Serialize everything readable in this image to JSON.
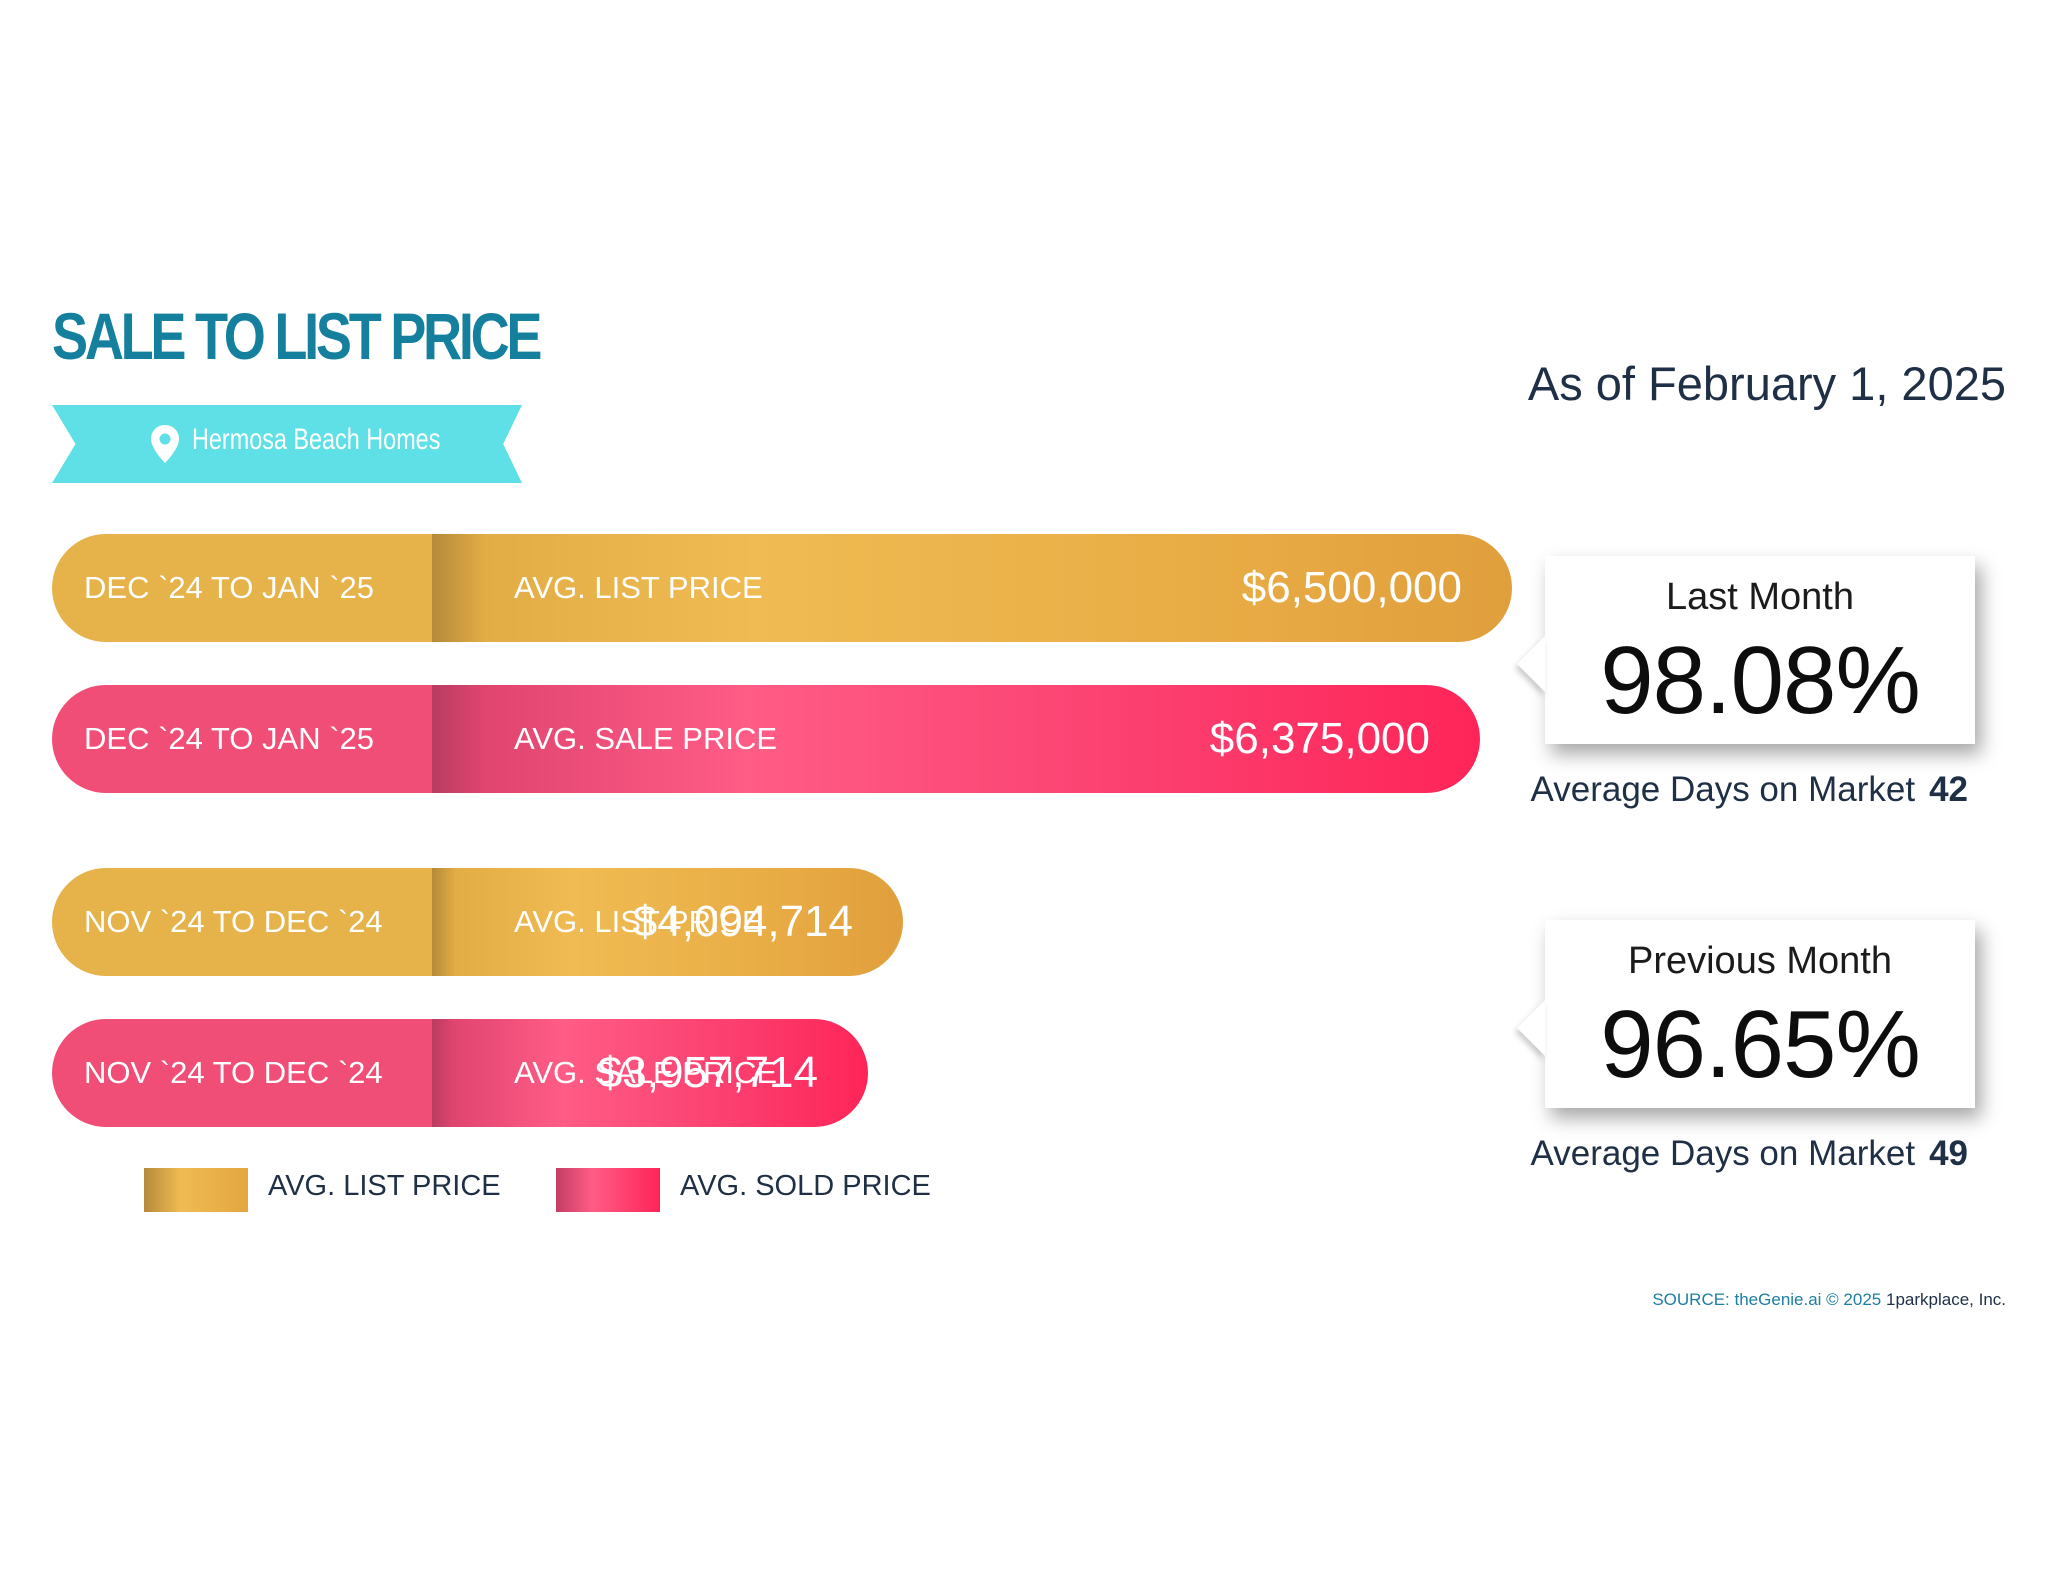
{
  "header": {
    "title": "SALE TO LIST PRICE",
    "location": "Hermosa Beach Homes",
    "as_of": "As of February 1, 2025"
  },
  "colors": {
    "title": "#14809e",
    "ribbon": "#5ee0e6",
    "list_price": "#e6b24a",
    "sale_price": "#f04e77"
  },
  "bars": [
    {
      "period": "DEC `24 TO JAN `25",
      "metric": "AVG. LIST PRICE",
      "value_label": "$6,500,000",
      "value": 6500000,
      "kind": "list"
    },
    {
      "period": "DEC `24 TO JAN `25",
      "metric": "AVG. SALE PRICE",
      "value_label": "$6,375,000",
      "value": 6375000,
      "kind": "sale"
    },
    {
      "period": "NOV `24 TO DEC `24",
      "metric": "AVG. LIST PRICE",
      "value_label": "$4,094,714",
      "value": 4094714,
      "kind": "list"
    },
    {
      "period": "NOV `24 TO DEC `24",
      "metric": "AVG. SALE PRICE",
      "value_label": "$3,957,714",
      "value": 3957714,
      "kind": "sale"
    }
  ],
  "callouts": [
    {
      "label": "Last Month",
      "value": "98.08%",
      "dom_label": "Average Days on Market",
      "dom_value": "42"
    },
    {
      "label": "Previous Month",
      "value": "96.65%",
      "dom_label": "Average Days on Market",
      "dom_value": "49"
    }
  ],
  "legend": {
    "list": "AVG. LIST PRICE",
    "sold": "AVG. SOLD PRICE"
  },
  "source": {
    "text": "SOURCE: theGenie.ai © 2025",
    "company": "1parkplace, Inc."
  },
  "chart_data": {
    "type": "bar",
    "title": "SALE TO LIST PRICE",
    "subtitle": "Hermosa Beach Homes",
    "orientation": "horizontal",
    "categories": [
      "DEC `24 TO JAN `25",
      "NOV `24 TO DEC `24"
    ],
    "series": [
      {
        "name": "AVG. LIST PRICE",
        "values": [
          6500000,
          4094714
        ]
      },
      {
        "name": "AVG. SOLD PRICE",
        "values": [
          6375000,
          3957714
        ]
      }
    ],
    "annotations": [
      {
        "label": "Last Month",
        "value": "98.08%",
        "days_on_market": 42
      },
      {
        "label": "Previous Month",
        "value": "96.65%",
        "days_on_market": 49
      }
    ],
    "legend_position": "bottom-left"
  }
}
